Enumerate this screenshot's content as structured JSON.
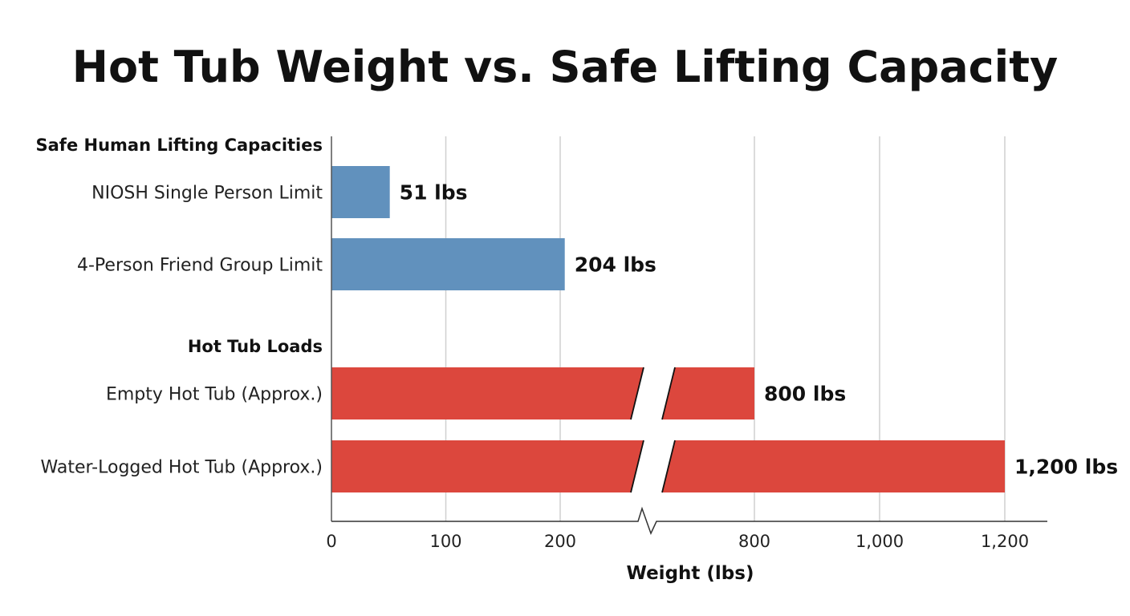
{
  "chart_data": {
    "type": "bar",
    "orientation": "horizontal",
    "title": "Hot Tub Weight vs. Safe Lifting Capacity",
    "xlabel": "Weight (lbs)",
    "ylabel": "",
    "axis_break": [
      280,
      630
    ],
    "xlim": [
      0,
      1270
    ],
    "grid": true,
    "x_ticks": [
      0,
      100,
      200,
      800,
      1000,
      1200
    ],
    "x_tick_labels": [
      "0",
      "100",
      "200",
      "800",
      "1,000",
      "1,200"
    ],
    "groups": [
      {
        "label": "Safe Human Lifting Capacities",
        "color": "#6191bd",
        "bars": [
          {
            "category": "NIOSH Single Person Limit",
            "value": 51,
            "data_label": "51 lbs"
          },
          {
            "category": "4-Person Friend Group Limit",
            "value": 204,
            "data_label": "204 lbs"
          }
        ]
      },
      {
        "label": "Hot Tub Loads",
        "color": "#dc473d",
        "bars": [
          {
            "category": "Empty Hot Tub (Approx.)",
            "value": 800,
            "data_label": "800 lbs"
          },
          {
            "category": "Water-Logged Hot Tub (Approx.)",
            "value": 1200,
            "data_label": "1,200 lbs"
          }
        ]
      }
    ]
  }
}
